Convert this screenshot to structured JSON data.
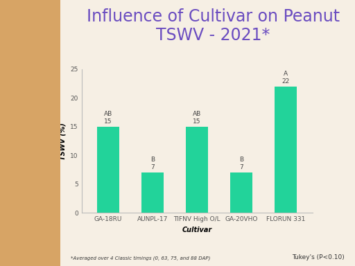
{
  "chart_data": {
    "type": "bar",
    "title": "Influence of Cultivar on Peanut TSWV - 2021*",
    "x_label": "Cultivar",
    "y_label": "TSWV (%)",
    "categories": [
      "GA-18RU",
      "AUNPL-17",
      "TIFNV High O/L",
      "GA-20VHO",
      "FLORUN 331"
    ],
    "values": [
      15,
      7,
      15,
      7,
      22
    ],
    "annotations": [
      "AB",
      "B",
      "AB",
      "B",
      "A"
    ],
    "color": "#22d39a",
    "ylim": [
      0,
      25
    ],
    "yticks": [
      0,
      5,
      10,
      15,
      20,
      25
    ],
    "grid": false,
    "data_labels": true,
    "footnote": "*Averaged over 4 Classic timings (0, 63, 75, and 88 DAP)",
    "test_note": "Tukey's (P<0.10)"
  }
}
